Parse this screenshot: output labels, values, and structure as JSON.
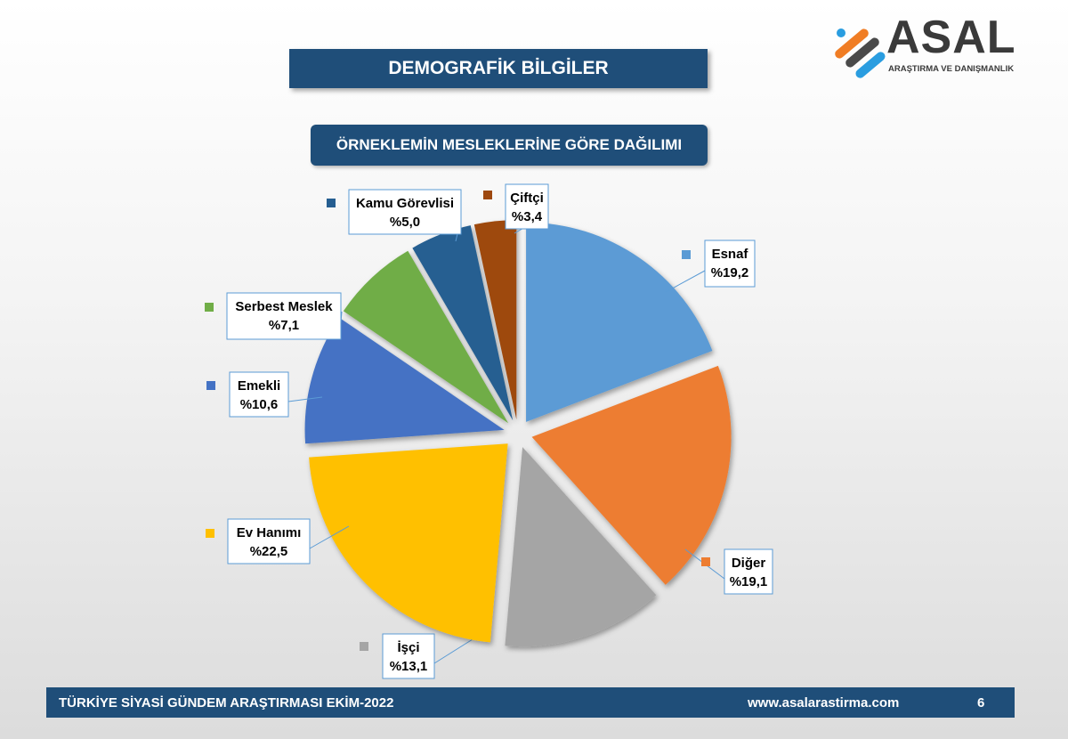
{
  "header": {
    "title": "DEMOGRAFİK BİLGİLER",
    "subtitle": "ÖRNEKLEMİN MESLEKLERİNE GÖRE DAĞILIMI"
  },
  "logo": {
    "word": "ASAL",
    "tagline": "ARAŞTIRMA VE DANIŞMANLIK",
    "colors": [
      "#2a9de0",
      "#f07d24",
      "#4a4a4a"
    ]
  },
  "footer": {
    "left": "TÜRKİYE SİYASİ GÜNDEM ARAŞTIRMASI EKİM-2022",
    "url": "www.asalarastirma.com",
    "page": "6"
  },
  "chart_data": {
    "type": "pie",
    "title": "ÖRNEKLEMİN MESLEKLERİNE GÖRE DAĞILIMI",
    "start_angle_deg": 0,
    "direction": "clockwise",
    "exploded": true,
    "slices": [
      {
        "label": "Esnaf",
        "value_label": "%19,2",
        "value": 19.2,
        "color": "#5b9bd5"
      },
      {
        "label": "Diğer",
        "value_label": "%19,1",
        "value": 19.1,
        "color": "#ed7d31"
      },
      {
        "label": "İşçi",
        "value_label": "%13,1",
        "value": 13.1,
        "color": "#a5a5a5"
      },
      {
        "label": "Ev Hanımı",
        "value_label": "%22,5",
        "value": 22.5,
        "color": "#ffc000"
      },
      {
        "label": "Emekli",
        "value_label": "%10,6",
        "value": 10.6,
        "color": "#4472c4"
      },
      {
        "label": "Serbest Meslek",
        "value_label": "%7,1",
        "value": 7.1,
        "color": "#70ad47"
      },
      {
        "label": "Kamu Görevlisi",
        "value_label": "%5,0",
        "value": 5.0,
        "color": "#255e91"
      },
      {
        "label": "Çiftçi",
        "value_label": "%3,4",
        "value": 3.4,
        "color": "#9e480e"
      }
    ]
  }
}
